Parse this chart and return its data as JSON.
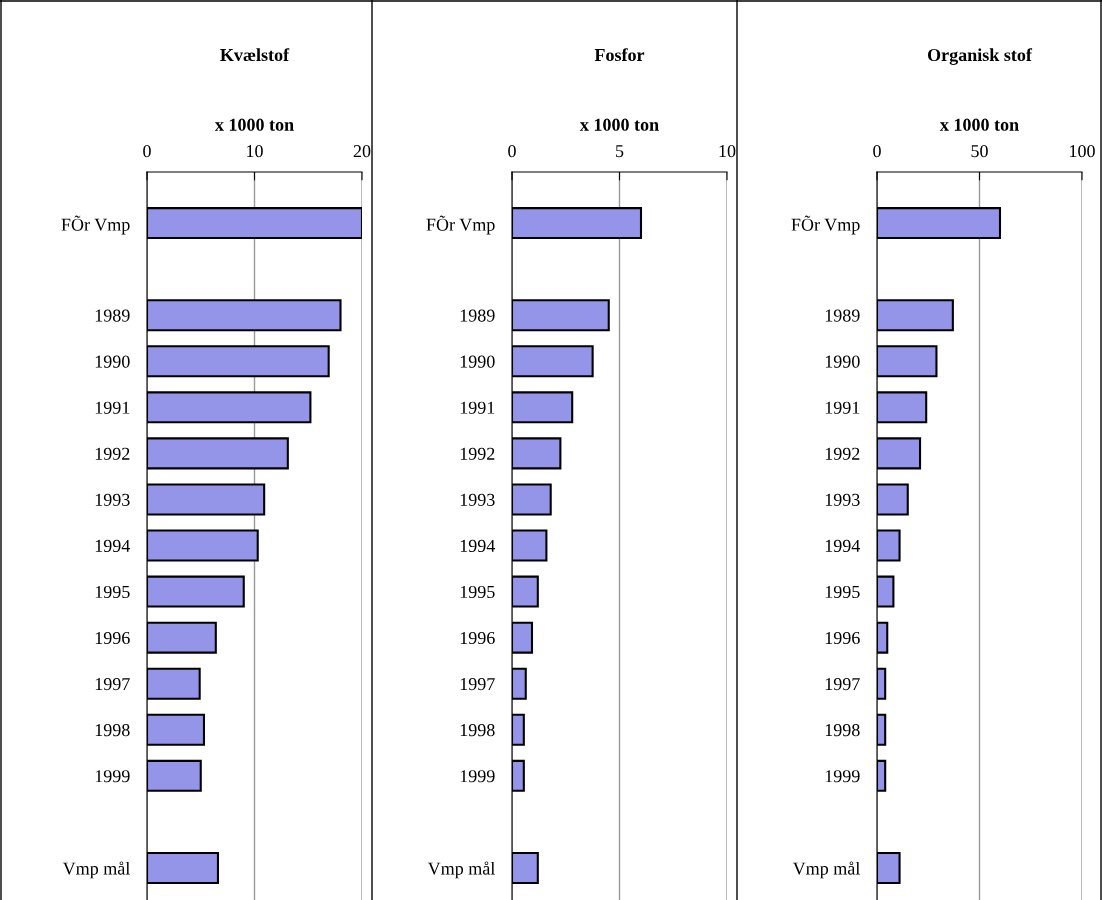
{
  "chart_data": [
    {
      "type": "bar",
      "orientation": "horizontal",
      "title": "Kvælstof",
      "xlabel": "x 1000 ton",
      "categories": [
        "FÕr Vmp",
        null,
        "1989",
        "1990",
        "1991",
        "1992",
        "1993",
        "1994",
        "1995",
        "1996",
        "1997",
        "1998",
        "1999",
        null,
        "Vmp mål"
      ],
      "values": [
        20.0,
        null,
        18.0,
        16.9,
        15.2,
        13.1,
        10.9,
        10.3,
        9.0,
        6.4,
        4.9,
        5.3,
        5.0,
        null,
        6.6
      ],
      "color": "#9494e8",
      "xlim": [
        0,
        20
      ],
      "xticks": [
        0,
        10,
        20
      ],
      "grid": "x"
    },
    {
      "type": "bar",
      "orientation": "horizontal",
      "title": "Fosfor",
      "xlabel": "x 1000 ton",
      "categories": [
        "FÕr Vmp",
        null,
        "1989",
        "1990",
        "1991",
        "1992",
        "1993",
        "1994",
        "1995",
        "1996",
        "1997",
        "1998",
        "1999",
        null,
        "Vmp mål"
      ],
      "values": [
        6.0,
        null,
        4.5,
        3.75,
        2.8,
        2.25,
        1.8,
        1.6,
        1.2,
        0.93,
        0.64,
        0.55,
        0.55,
        null,
        1.2
      ],
      "color": "#9494e8",
      "xlim": [
        0,
        10
      ],
      "xticks": [
        0,
        5,
        10
      ],
      "grid": "x"
    },
    {
      "type": "bar",
      "orientation": "horizontal",
      "title": "Organisk stof",
      "xlabel": "x 1000 ton",
      "categories": [
        "FÕr Vmp",
        null,
        "1989",
        "1990",
        "1991",
        "1992",
        "1993",
        "1994",
        "1995",
        "1996",
        "1997",
        "1998",
        "1999",
        null,
        "Vmp mål"
      ],
      "values": [
        60,
        null,
        37,
        29,
        24,
        21,
        15,
        11,
        8,
        5,
        4,
        4,
        4,
        null,
        11
      ],
      "color": "#9494e8",
      "xlim": [
        0,
        100
      ],
      "xticks": [
        0,
        50,
        100
      ],
      "grid": "x"
    }
  ]
}
